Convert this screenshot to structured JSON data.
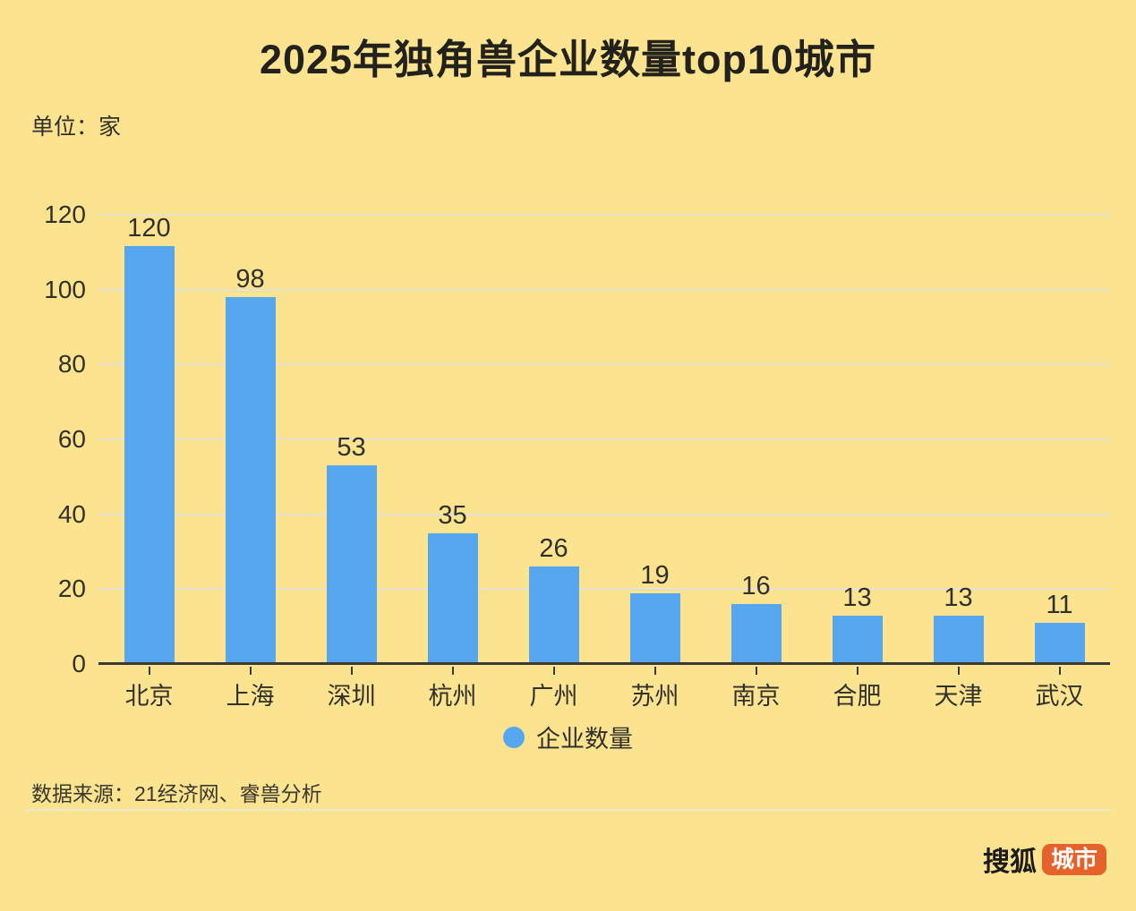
{
  "title": "2025年独角兽企业数量top10城市",
  "unit_label": "单位：家",
  "legend": {
    "label": "企业数量"
  },
  "source": "数据来源：21经济网、睿兽分析",
  "logo": {
    "text": "搜狐",
    "badge": "城市"
  },
  "colors": {
    "background": "#FBE38F",
    "bar": "#56A7EF",
    "title-text": "#23211B",
    "text": "#32302A",
    "gridline": "#E6E2D2",
    "axis": "#3B3A33",
    "divider": "#EDE7CF",
    "source-text": "#3A382F",
    "badge": "#E5632B"
  },
  "chart_data": {
    "type": "bar",
    "title": "2025年独角兽企业数量top10城市",
    "unit": "家",
    "series_name": "企业数量",
    "categories": [
      "北京",
      "上海",
      "深圳",
      "杭州",
      "广州",
      "苏州",
      "南京",
      "合肥",
      "天津",
      "武汉"
    ],
    "values": [
      120,
      98,
      53,
      35,
      26,
      19,
      16,
      13,
      13,
      11
    ],
    "ylim": [
      0,
      120
    ],
    "yticks": [
      0,
      20,
      40,
      60,
      80,
      100,
      120
    ],
    "grid": true,
    "legend_position": "bottom",
    "source": "数据来源：21经济网、睿兽分析"
  }
}
